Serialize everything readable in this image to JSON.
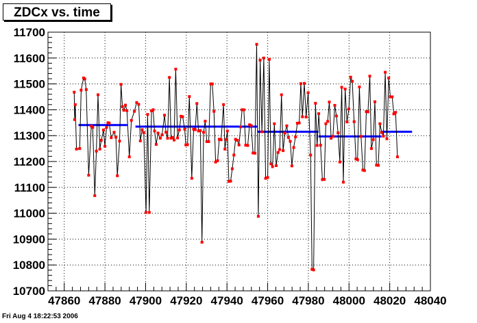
{
  "title": "ZDCx vs. time",
  "footer": "Fri Aug  4 18:22:53 2006",
  "chart_data": {
    "type": "line",
    "title": "ZDCx vs. time",
    "xlabel": "",
    "ylabel": "",
    "xlim": [
      47852,
      48040
    ],
    "ylim": [
      10700,
      11700
    ],
    "x_ticks": [
      47860,
      47880,
      47900,
      47920,
      47940,
      47960,
      47980,
      48000,
      48020,
      48040
    ],
    "y_ticks": [
      10700,
      10800,
      10900,
      11000,
      11100,
      11200,
      11300,
      11400,
      11500,
      11600,
      11700
    ],
    "grid": true,
    "colors": {
      "line": "#000000",
      "points": "#ff0000",
      "fit": "#0000ff"
    },
    "points": [
      [
        47864.9,
        11468
      ],
      [
        47865.1,
        11362
      ],
      [
        47865.4,
        11420
      ],
      [
        47866.0,
        11248
      ],
      [
        47867.6,
        11250
      ],
      [
        47868.3,
        11476
      ],
      [
        47869.5,
        11523
      ],
      [
        47870.1,
        11519
      ],
      [
        47870.8,
        11478
      ],
      [
        47872.0,
        11147
      ],
      [
        47873.3,
        11337
      ],
      [
        47874.0,
        11332
      ],
      [
        47875.0,
        11068
      ],
      [
        47875.8,
        11240
      ],
      [
        47876.6,
        11458
      ],
      [
        47877.5,
        11248
      ],
      [
        47878.2,
        11282
      ],
      [
        47879.3,
        11322
      ],
      [
        47880.0,
        11259
      ],
      [
        47880.8,
        11332
      ],
      [
        47881.5,
        11350
      ],
      [
        47882.1,
        11348
      ],
      [
        47883.1,
        11292
      ],
      [
        47884.5,
        11313
      ],
      [
        47885.4,
        11294
      ],
      [
        47886.1,
        11145
      ],
      [
        47887.2,
        11279
      ],
      [
        47887.9,
        11498
      ],
      [
        47888.6,
        11412
      ],
      [
        47889.3,
        11398
      ],
      [
        47890.1,
        11418
      ],
      [
        47890.8,
        11397
      ],
      [
        47892.0,
        11218
      ],
      [
        47893.0,
        11359
      ],
      [
        47894.5,
        11394
      ],
      [
        47895.6,
        11428
      ],
      [
        47896.6,
        11421
      ],
      [
        47897.4,
        11280
      ],
      [
        47898.3,
        11323
      ],
      [
        47899.1,
        11312
      ],
      [
        47900.2,
        11003
      ],
      [
        47901.0,
        11382
      ],
      [
        47901.8,
        11003
      ],
      [
        47902.9,
        11396
      ],
      [
        47903.7,
        11400
      ],
      [
        47904.4,
        11318
      ],
      [
        47905.2,
        11266
      ],
      [
        47906.1,
        11310
      ],
      [
        47907.2,
        11290
      ],
      [
        47908.1,
        11303
      ],
      [
        47909.3,
        11379
      ],
      [
        47910.0,
        11313
      ],
      [
        47910.8,
        11290
      ],
      [
        47911.7,
        11525
      ],
      [
        47912.5,
        11290
      ],
      [
        47913.3,
        11293
      ],
      [
        47914.0,
        11283
      ],
      [
        47914.8,
        11557
      ],
      [
        47915.7,
        11291
      ],
      [
        47916.6,
        11322
      ],
      [
        47917.4,
        11375
      ],
      [
        47918.2,
        11373
      ],
      [
        47919.2,
        11325
      ],
      [
        47919.8,
        11264
      ],
      [
        47920.6,
        11265
      ],
      [
        47921.5,
        11451
      ],
      [
        47922.7,
        11135
      ],
      [
        47923.6,
        11325
      ],
      [
        47924.4,
        11323
      ],
      [
        47925.2,
        11424
      ],
      [
        47926.0,
        11318
      ],
      [
        47926.9,
        11320
      ],
      [
        47927.7,
        10888
      ],
      [
        47928.5,
        11313
      ],
      [
        47929.3,
        11356
      ],
      [
        47930.1,
        11277
      ],
      [
        47931.0,
        11277
      ],
      [
        47932.0,
        11500
      ],
      [
        47932.8,
        11500
      ],
      [
        47933.6,
        11394
      ],
      [
        47934.4,
        11198
      ],
      [
        47935.4,
        11203
      ],
      [
        47936.2,
        11286
      ],
      [
        47937.1,
        11284
      ],
      [
        47938.3,
        11420
      ],
      [
        47939.0,
        11248
      ],
      [
        47939.6,
        11285
      ],
      [
        47940.2,
        11318
      ],
      [
        47940.9,
        11123
      ],
      [
        47941.8,
        11124
      ],
      [
        47942.6,
        11172
      ],
      [
        47943.4,
        11225
      ],
      [
        47944.2,
        11286
      ],
      [
        47945.1,
        11282
      ],
      [
        47945.9,
        11264
      ],
      [
        47946.7,
        11334
      ],
      [
        47947.4,
        11400
      ],
      [
        47948.3,
        11400
      ],
      [
        47949.2,
        11263
      ],
      [
        47950.2,
        11262
      ],
      [
        47951.1,
        11342
      ],
      [
        47951.9,
        11339
      ],
      [
        47952.8,
        11233
      ],
      [
        47953.7,
        11232
      ],
      [
        47954.6,
        11653
      ],
      [
        47955.4,
        10988
      ],
      [
        47956.3,
        11592
      ],
      [
        47957.2,
        11315
      ],
      [
        47958.1,
        11600
      ],
      [
        47959.0,
        11135
      ],
      [
        47960.0,
        11138
      ],
      [
        47960.8,
        11595
      ],
      [
        47961.6,
        11191
      ],
      [
        47962.4,
        11180
      ],
      [
        47963.3,
        11346
      ],
      [
        47964.2,
        11184
      ],
      [
        47965.1,
        11235
      ],
      [
        47965.9,
        11246
      ],
      [
        47966.8,
        11458
      ],
      [
        47967.6,
        11242
      ],
      [
        47968.5,
        11310
      ],
      [
        47969.4,
        11338
      ],
      [
        47970.2,
        11293
      ],
      [
        47971.1,
        11278
      ],
      [
        47971.9,
        11183
      ],
      [
        47972.8,
        11254
      ],
      [
        47973.7,
        11295
      ],
      [
        47974.6,
        11348
      ],
      [
        47975.5,
        11349
      ],
      [
        47976.3,
        11501
      ],
      [
        47977.1,
        11373
      ],
      [
        47978.0,
        11502
      ],
      [
        47978.9,
        11372
      ],
      [
        47979.9,
        11466
      ],
      [
        47981.1,
        11225
      ],
      [
        47981.8,
        10783
      ],
      [
        47982.6,
        10781
      ],
      [
        47983.5,
        11425
      ],
      [
        47984.3,
        11262
      ],
      [
        47985.1,
        11385
      ],
      [
        47986.0,
        11263
      ],
      [
        47986.9,
        11130
      ],
      [
        47987.8,
        11131
      ],
      [
        47988.6,
        11346
      ],
      [
        47989.5,
        11355
      ],
      [
        47990.3,
        11430
      ],
      [
        47991.2,
        11290
      ],
      [
        47992.1,
        11297
      ],
      [
        47993.0,
        11417
      ],
      [
        47993.8,
        11376
      ],
      [
        47994.6,
        11311
      ],
      [
        47995.5,
        11198
      ],
      [
        47996.4,
        11487
      ],
      [
        47997.2,
        11120
      ],
      [
        47998.1,
        11480
      ],
      [
        47999.0,
        11353
      ],
      [
        47999.9,
        11403
      ],
      [
        48000.8,
        11526
      ],
      [
        48001.6,
        11510
      ],
      [
        48002.5,
        11354
      ],
      [
        48003.4,
        11210
      ],
      [
        48004.2,
        11207
      ],
      [
        48005.1,
        11488
      ],
      [
        48005.9,
        11297
      ],
      [
        48006.8,
        11167
      ],
      [
        48007.6,
        11165
      ],
      [
        48008.5,
        11393
      ],
      [
        48009.3,
        11392
      ],
      [
        48010.2,
        11530
      ],
      [
        48011.0,
        11250
      ],
      [
        48011.9,
        11285
      ],
      [
        48012.7,
        11431
      ],
      [
        48013.5,
        11186
      ],
      [
        48014.4,
        11185
      ],
      [
        48015.2,
        11346
      ],
      [
        48016.1,
        11312
      ],
      [
        48016.9,
        11298
      ],
      [
        48017.8,
        11545
      ],
      [
        48018.6,
        11288
      ],
      [
        48019.5,
        11523
      ],
      [
        48020.3,
        11450
      ],
      [
        48021.2,
        11450
      ],
      [
        48022.0,
        11384
      ],
      [
        48022.9,
        11390
      ],
      [
        48023.8,
        11218
      ]
    ],
    "fit_segments": [
      {
        "x": [
          47867,
          47891
        ],
        "y": 11341
      },
      {
        "x": [
          47895,
          47955
        ],
        "y": 11335
      },
      {
        "x": [
          47955,
          47985
        ],
        "y": 11315
      },
      {
        "x": [
          47985,
          48016
        ],
        "y": 11297
      },
      {
        "x": [
          48016,
          48031
        ],
        "y": 11315
      }
    ]
  }
}
